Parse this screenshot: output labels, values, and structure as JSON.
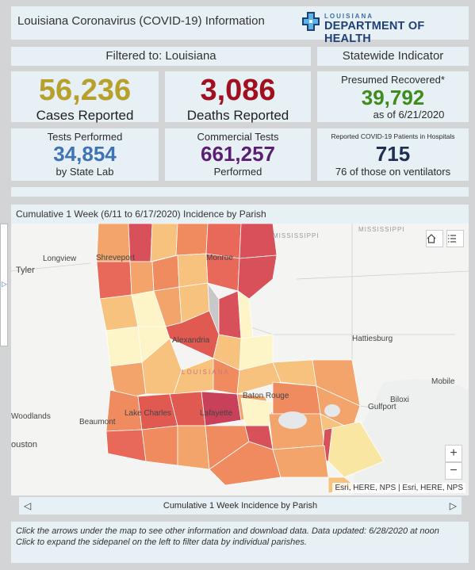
{
  "header": {
    "title": "Louisiana Coronavirus (COVID-19) Information",
    "logo_top": "LOUISIANA",
    "logo_bottom": "DEPARTMENT OF HEALTH"
  },
  "filter_label": "Filtered to: Louisiana",
  "statewide_label": "Statewide Indicator",
  "stats": {
    "cases": {
      "value": "56,236",
      "label": "Cases Reported"
    },
    "deaths": {
      "value": "3,086",
      "label": "Deaths Reported"
    },
    "recovered": {
      "title": "Presumed Recovered*",
      "value": "39,792",
      "sub": "as of 6/21/2020"
    },
    "tests_state": {
      "title": "Tests Performed",
      "value": "34,854",
      "sub": "by State Lab"
    },
    "tests_commercial": {
      "title": "Commercial Tests",
      "value": "661,257",
      "sub": "Performed"
    },
    "hospital": {
      "title": "Reported COVID-19 Patients in Hospitals",
      "value": "715",
      "sub": "76 of those on ventilators"
    }
  },
  "colors": {
    "cases": "#b7a02b",
    "deaths": "#a11020",
    "recovered": "#3d8c1c",
    "tests_state": "#3f73b5",
    "tests_commercial": "#5b1e73",
    "hospital": "#1e2f52"
  },
  "map": {
    "title": "Cumulative 1 Week (6/11 to 6/17/2020) Incidence by Parish",
    "labels": {
      "mississippi_1": "MISSISSIPPI",
      "mississippi_2": "MISSISSIPPI",
      "tyler": "Tyler",
      "longview": "Longview",
      "shreveport": "Shreveport",
      "monroe": "Monroe",
      "alexandria": "Alexandria",
      "hattiesburg": "Hattiesburg",
      "mobile": "Mobile",
      "biloxi": "Biloxi",
      "gulfport": "Gulfport",
      "baton_rouge": "Baton Rouge",
      "lake_charles": "Lake Charles",
      "lafayette": "Lafayette",
      "beaumont": "Beaumont",
      "woodlands": "Woodlands",
      "houston": "ouston",
      "louisiana_watermark": "LOUISIANA"
    },
    "zoom_in": "+",
    "zoom_out": "−",
    "attribution": "Esri, HERE, NPS | Esri, HERE, NPS",
    "home_icon": "home-icon",
    "legend_icon": "legend-list-icon"
  },
  "pager": {
    "label": "Cumulative 1 Week Incidence by Parish",
    "prev": "◁",
    "next": "▷"
  },
  "side_tab_arrow": "▷",
  "footer": {
    "line1": "Click the arrows under the map to see other information and download data. Data updated: 6/28/2020 at noon",
    "line2": "Click to expand the sidepanel on the left to filter data by individual parishes."
  }
}
